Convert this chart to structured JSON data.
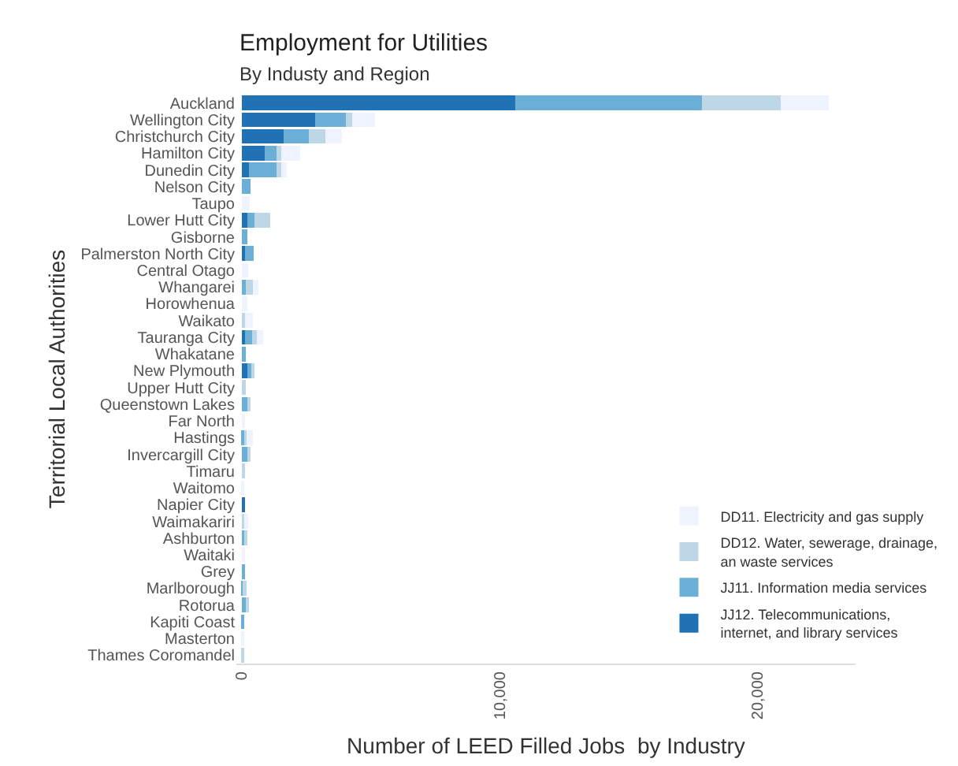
{
  "chart_data": {
    "type": "bar",
    "orientation": "horizontal",
    "stacked": true,
    "title": "Employment for Utilities",
    "subtitle": "By Industy and Region",
    "xlabel": "Number of LEED Filled Jobs  by Industry",
    "ylabel": "Territorial Local Authorities",
    "categories": [
      "Auckland",
      "Wellington City",
      "Christchurch City",
      "Hamilton City",
      "Dunedin City",
      "Nelson City",
      "Taupo",
      "Lower Hutt City",
      "Gisborne",
      "Palmerston North City",
      "Central Otago",
      "Whangarei",
      "Horowhenua",
      "Waikato",
      "Tauranga City",
      "Whakatane",
      "New Plymouth",
      "Upper Hutt City",
      "Queenstown Lakes",
      "Far North",
      "Hastings",
      "Invercargill City",
      "Timaru",
      "Waitomo",
      "Napier City",
      "Waimakariri",
      "Ashburton",
      "Waitaki",
      "Grey",
      "Marlborough",
      "Rotorua",
      "Kapiti Coast",
      "Masterton",
      "Thames Coromandel"
    ],
    "series": [
      {
        "name": "JJ12. Telecommunications, internet, and library services",
        "color": "#2171b5",
        "values": [
          10600,
          2850,
          1630,
          900,
          290,
          0,
          0,
          230,
          0,
          150,
          0,
          0,
          0,
          0,
          150,
          0,
          220,
          0,
          0,
          0,
          0,
          0,
          0,
          0,
          130,
          0,
          0,
          0,
          0,
          0,
          0,
          0,
          0,
          0
        ]
      },
      {
        "name": "JJ11. Information media services",
        "color": "#6baed6",
        "values": [
          7250,
          1180,
          980,
          450,
          1060,
          350,
          0,
          280,
          230,
          320,
          0,
          180,
          0,
          0,
          260,
          180,
          160,
          0,
          270,
          0,
          120,
          250,
          0,
          0,
          0,
          0,
          150,
          0,
          130,
          80,
          200,
          90,
          0,
          0
        ]
      },
      {
        "name": "DD12. Water, sewerage, drainage, an waste services",
        "color": "#bdd7e7",
        "values": [
          3050,
          270,
          630,
          180,
          180,
          0,
          0,
          610,
          0,
          0,
          0,
          270,
          0,
          150,
          180,
          0,
          130,
          180,
          60,
          0,
          80,
          110,
          130,
          0,
          0,
          160,
          50,
          0,
          0,
          120,
          70,
          0,
          0,
          90
        ]
      },
      {
        "name": "DD11. Electricity and gas supply",
        "color": "#eff3ff",
        "values": [
          1850,
          870,
          650,
          750,
          220,
          0,
          320,
          0,
          0,
          0,
          250,
          200,
          220,
          280,
          260,
          0,
          0,
          0,
          0,
          130,
          240,
          0,
          0,
          90,
          0,
          110,
          0,
          130,
          0,
          0,
          0,
          0,
          90,
          0
        ]
      }
    ],
    "xlim": [
      -200,
      23800
    ],
    "xticks": [
      0,
      {
        "value": 10000,
        "label": "10,000"
      },
      {
        "value": 20000,
        "label": "20,000"
      }
    ],
    "grid": false,
    "legend": "bottom right"
  }
}
